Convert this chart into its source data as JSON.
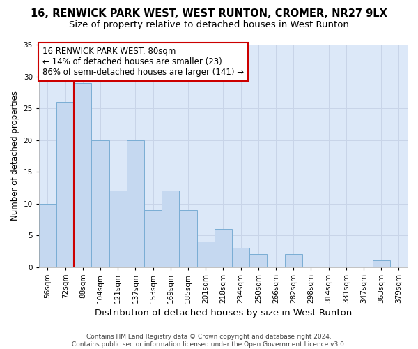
{
  "title": "16, RENWICK PARK WEST, WEST RUNTON, CROMER, NR27 9LX",
  "subtitle": "Size of property relative to detached houses in West Runton",
  "xlabel": "Distribution of detached houses by size in West Runton",
  "ylabel": "Number of detached properties",
  "categories": [
    "56sqm",
    "72sqm",
    "88sqm",
    "104sqm",
    "121sqm",
    "137sqm",
    "153sqm",
    "169sqm",
    "185sqm",
    "201sqm",
    "218sqm",
    "234sqm",
    "250sqm",
    "266sqm",
    "282sqm",
    "298sqm",
    "314sqm",
    "331sqm",
    "347sqm",
    "363sqm",
    "379sqm"
  ],
  "values": [
    10,
    26,
    29,
    20,
    12,
    20,
    9,
    12,
    9,
    4,
    6,
    3,
    2,
    0,
    2,
    0,
    0,
    0,
    0,
    1,
    0
  ],
  "bar_color": "#c5d8f0",
  "bar_edge_color": "#7aadd4",
  "vline_x": 1.5,
  "vline_color": "#cc0000",
  "annotation_text": "16 RENWICK PARK WEST: 80sqm\n← 14% of detached houses are smaller (23)\n86% of semi-detached houses are larger (141) →",
  "annotation_box_facecolor": "white",
  "annotation_box_edgecolor": "#cc0000",
  "ylim": [
    0,
    35
  ],
  "yticks": [
    0,
    5,
    10,
    15,
    20,
    25,
    30,
    35
  ],
  "grid_color": "#c8d4e8",
  "background_color": "#dce8f8",
  "footnote": "Contains HM Land Registry data © Crown copyright and database right 2024.\nContains public sector information licensed under the Open Government Licence v3.0.",
  "title_fontsize": 10.5,
  "subtitle_fontsize": 9.5,
  "xlabel_fontsize": 9.5,
  "ylabel_fontsize": 8.5,
  "tick_fontsize": 7.5,
  "annotation_fontsize": 8.5,
  "footnote_fontsize": 6.5
}
